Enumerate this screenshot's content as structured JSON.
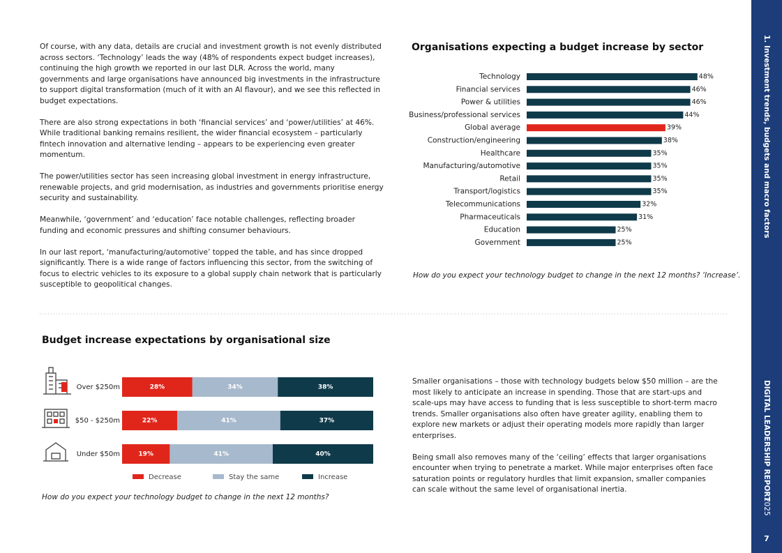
{
  "paragraphs_left": [
    "Of course, with any data, details are crucial and investment growth is not evenly distributed across sectors. ‘Technology’ leads the way (48% of respondents expect budget increases), continuing the high growth we reported in our last DLR. Across the world, many governments and large organisations have announced big investments in the infrastructure to support digital transformation (much of it with an AI flavour), and we see this reflected in budget expectations.",
    "There are also strong expectations in both ‘financial services’ and ‘power/utilities’ at 46%. While traditional banking remains resilient, the wider financial ecosystem – particularly fintech innovation and alternative lending – appears to be experiencing even greater momentum.",
    "The power/utilities sector has seen increasing global investment in energy infrastructure, renewable projects, and grid modernisation, as industries and governments prioritise energy security and sustainability.",
    "Meanwhile, ‘government’ and ‘education’ face notable challenges, reflecting broader funding and economic pressures and shifting consumer behaviours.",
    "In our last report, ‘manufacturing/automotive’ topped the table, and has since dropped significantly. There is a wide range of factors influencing this sector, from the switching of focus to electric vehicles to its exposure to a global supply chain network that is particularly susceptible to geopolitical changes."
  ],
  "chart_data": [
    {
      "type": "hbar",
      "title": "Organisations expecting a budget increase by sector",
      "categories": [
        "Technology",
        "Financial services",
        "Power & utilities",
        "Business/professional services",
        "Global average",
        "Construction/engineering",
        "Healthcare",
        "Manufacturing/automotive",
        "Retail",
        "Transport/logistics",
        "Telecommunications",
        "Pharmaceuticals",
        "Education",
        "Government"
      ],
      "values": [
        48,
        46,
        46,
        44,
        39,
        38,
        35,
        35,
        35,
        35,
        32,
        31,
        25,
        25
      ],
      "value_labels": [
        "48%",
        "46%",
        "46%",
        "44%",
        "39%",
        "38%",
        "35%",
        "35%",
        "35%",
        "35%",
        "32%",
        "31%",
        "25%",
        "25%"
      ],
      "colors": [
        "#0f3a4a",
        "#0f3a4a",
        "#0f3a4a",
        "#0f3a4a",
        "#e0261b",
        "#0f3a4a",
        "#0f3a4a",
        "#0f3a4a",
        "#0f3a4a",
        "#0f3a4a",
        "#0f3a4a",
        "#0f3a4a",
        "#0f3a4a",
        "#0f3a4a"
      ],
      "caption": "How do you expect your technology budget to change in the next 12 months? ‘Increase’."
    },
    {
      "type": "stacked_hbar",
      "title": "Budget increase expectations by organisational size",
      "categories": [
        "Over $250m",
        "$50 - $250m",
        "Under $50m"
      ],
      "series": [
        {
          "name": "Decrease",
          "color": "#e0261b",
          "values": [
            28,
            22,
            19
          ],
          "value_labels": [
            "28%",
            "22%",
            "19%"
          ]
        },
        {
          "name": "Stay the same",
          "color": "#a7b9cc",
          "values": [
            34,
            41,
            41
          ],
          "value_labels": [
            "34%",
            "41%",
            "41%"
          ]
        },
        {
          "name": "Increase",
          "color": "#0f3a4a",
          "values": [
            38,
            37,
            40
          ],
          "value_labels": [
            "38%",
            "37%",
            "40%"
          ]
        }
      ],
      "caption": "How do you expect your technology budget to change in the next 12 months?"
    }
  ],
  "paragraphs_right": [
    "Smaller organisations – those with technology budgets below $50 million – are the most likely to anticipate an increase in spending. Those that are start-ups and scale-ups may have access to funding that is less susceptible to short-term macro trends. Smaller organisations also often have greater agility, enabling them to explore new markets or adjust their operating models more rapidly than larger enterprises.",
    "Being small also removes many of the ‘ceiling’ effects that larger organisations encounter when trying to penetrate a market. While major enterprises often face saturation points or regulatory hurdles that limit expansion, smaller companies can scale without the same level of organisational inertia."
  ],
  "sidebar": {
    "section": "1. Investment trends, budgets and macro factors",
    "report": "DIGITAL LEADERSHIP REPORT",
    "year": "2025",
    "page": "7"
  }
}
